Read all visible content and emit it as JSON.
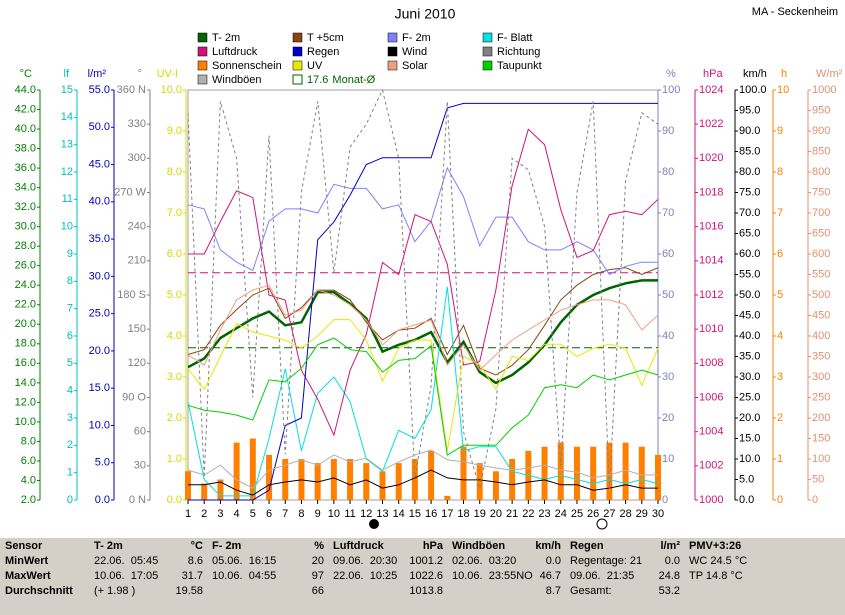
{
  "chart_data": {
    "type": "line",
    "title": "Juni 2010",
    "station": "MA - Seckenheim",
    "x": [
      1,
      2,
      3,
      4,
      5,
      6,
      7,
      8,
      9,
      10,
      11,
      12,
      13,
      14,
      15,
      16,
      17,
      18,
      19,
      20,
      21,
      22,
      23,
      24,
      25,
      26,
      27,
      28,
      29,
      30
    ],
    "xlim": [
      1,
      30
    ],
    "xticks": [
      1,
      2,
      3,
      4,
      5,
      6,
      7,
      8,
      9,
      10,
      11,
      12,
      13,
      14,
      15,
      16,
      17,
      18,
      19,
      20,
      21,
      22,
      23,
      24,
      25,
      26,
      27,
      28,
      29,
      30
    ],
    "axes": [
      {
        "label": "°C",
        "side": "left",
        "color": "#008000",
        "ylim": [
          2,
          44
        ],
        "yticks": [
          {
            "value": 2,
            "label": "2.0"
          },
          {
            "value": 4,
            "label": "4.0"
          },
          {
            "value": 6,
            "label": "6.0"
          },
          {
            "value": 8,
            "label": "8.0"
          },
          {
            "value": 10,
            "label": "10.0"
          },
          {
            "value": 12,
            "label": "12.0"
          },
          {
            "value": 14,
            "label": "14.0"
          },
          {
            "value": 16,
            "label": "16.0"
          },
          {
            "value": 18,
            "label": "18.0"
          },
          {
            "value": 20,
            "label": "20.0"
          },
          {
            "value": 22,
            "label": "22.0"
          },
          {
            "value": 24,
            "label": "24.0"
          },
          {
            "value": 26,
            "label": "26.0"
          },
          {
            "value": 28,
            "label": "28.0"
          },
          {
            "value": 30,
            "label": "30.0"
          },
          {
            "value": 32,
            "label": "32.0"
          },
          {
            "value": 34,
            "label": "34.0"
          },
          {
            "value": 36,
            "label": "36.0"
          },
          {
            "value": 38,
            "label": "38.0"
          },
          {
            "value": 40,
            "label": "40.0"
          },
          {
            "value": 42,
            "label": "42.0"
          },
          {
            "value": 44,
            "label": "44.0"
          }
        ]
      },
      {
        "label": "lf",
        "side": "left",
        "color": "#00c0c0",
        "ylim": [
          0,
          15
        ],
        "yticks": [
          0,
          1,
          2,
          3,
          4,
          5,
          6,
          7,
          8,
          9,
          10,
          11,
          12,
          13,
          14,
          15
        ]
      },
      {
        "label": "l/m²",
        "side": "left",
        "color": "#0000c0",
        "ylim": [
          0,
          55
        ],
        "yticks": [
          {
            "value": 0,
            "label": "0.0"
          },
          {
            "value": 5,
            "label": "5.0"
          },
          {
            "value": 10,
            "label": "10.0"
          },
          {
            "value": 15,
            "label": "15.0"
          },
          {
            "value": 20,
            "label": "20.0"
          },
          {
            "value": 25,
            "label": "25.0"
          },
          {
            "value": 30,
            "label": "30.0"
          },
          {
            "value": 35,
            "label": "35.0"
          },
          {
            "value": 40,
            "label": "40.0"
          },
          {
            "value": 45,
            "label": "45.0"
          },
          {
            "value": 50,
            "label": "50.0"
          },
          {
            "value": 55,
            "label": "55.0"
          }
        ]
      },
      {
        "label": "°",
        "side": "left",
        "color": "#808080",
        "ylim": [
          0,
          360
        ],
        "yticks": [
          {
            "value": 0,
            "label": "0 N"
          },
          30,
          60,
          {
            "value": 90,
            "label": "90 O"
          },
          120,
          150,
          {
            "value": 180,
            "label": "180 S"
          },
          210,
          240,
          {
            "value": 270,
            "label": "270 W"
          },
          300,
          330,
          {
            "value": 360,
            "label": "360 N"
          }
        ]
      },
      {
        "label": "UV-I",
        "side": "left",
        "color": "#d8d800",
        "ylim": [
          0,
          10
        ],
        "yticks": [
          {
            "value": 0,
            "label": "0.0"
          },
          {
            "value": 1,
            "label": "1.0"
          },
          {
            "value": 2,
            "label": "2.0"
          },
          {
            "value": 3,
            "label": "3.0"
          },
          {
            "value": 4,
            "label": "4.0"
          },
          {
            "value": 5,
            "label": "5.0"
          },
          {
            "value": 6,
            "label": "6.0"
          },
          {
            "value": 7,
            "label": "7.0"
          },
          {
            "value": 8,
            "label": "8.0"
          },
          {
            "value": 9,
            "label": "9.0"
          },
          {
            "value": 10,
            "label": "10.0"
          }
        ]
      },
      {
        "label": "%",
        "side": "right",
        "color": "#8080c0",
        "ylim": [
          0,
          100
        ],
        "yticks": [
          0,
          10,
          20,
          30,
          40,
          50,
          60,
          70,
          80,
          90,
          100
        ]
      },
      {
        "label": "hPa",
        "side": "right",
        "color": "#d0157a",
        "ylim": [
          1000,
          1024
        ],
        "yticks": [
          1000,
          1002,
          1004,
          1006,
          1008,
          1010,
          1012,
          1014,
          1016,
          1018,
          1020,
          1022,
          1024
        ]
      },
      {
        "label": "km/h",
        "side": "right",
        "color": "#000000",
        "ylim": [
          0,
          100
        ],
        "yticks": [
          {
            "value": 0,
            "label": "0.0"
          },
          {
            "value": 5,
            "label": "5.0"
          },
          {
            "value": 10,
            "label": "10.0"
          },
          {
            "value": 15,
            "label": "15.0"
          },
          {
            "value": 20,
            "label": "20.0"
          },
          {
            "value": 25,
            "label": "25.0"
          },
          {
            "value": 30,
            "label": "30.0"
          },
          {
            "value": 35,
            "label": "35.0"
          },
          {
            "value": 40,
            "label": "40.0"
          },
          {
            "value": 45,
            "label": "45.0"
          },
          {
            "value": 50,
            "label": "50.0"
          },
          {
            "value": 55,
            "label": "55.0"
          },
          {
            "value": 60,
            "label": "60.0"
          },
          {
            "value": 65,
            "label": "65.0"
          },
          {
            "value": 70,
            "label": "70.0"
          },
          {
            "value": 75,
            "label": "75.0"
          },
          {
            "value": 80,
            "label": "80.0"
          },
          {
            "value": 85,
            "label": "85.0"
          },
          {
            "value": 90,
            "label": "90.0"
          },
          {
            "value": 95,
            "label": "95.0"
          },
          {
            "value": 100,
            "label": "100.0"
          }
        ]
      },
      {
        "label": "h",
        "side": "right",
        "color": "#ff8000",
        "ylim": [
          0,
          10
        ],
        "yticks": [
          0,
          1,
          2,
          3,
          4,
          5,
          6,
          7,
          8,
          9,
          10
        ]
      },
      {
        "label": "W/m²",
        "side": "right",
        "color": "#e09070",
        "ylim": [
          0,
          1000
        ],
        "yticks": [
          0,
          50,
          100,
          150,
          200,
          250,
          300,
          350,
          400,
          450,
          500,
          550,
          600,
          650,
          700,
          750,
          800,
          850,
          900,
          950,
          1000
        ]
      }
    ],
    "series": [
      {
        "name": "T- 2m",
        "color": "#006400",
        "axis": "°C",
        "line_width": 2.5,
        "values": [
          15.6,
          16.5,
          18.6,
          19.6,
          20.6,
          21.3,
          19.9,
          20.2,
          23.3,
          23.3,
          22.1,
          20.6,
          17.2,
          17.9,
          18.4,
          19.2,
          16.1,
          18.2,
          15.1,
          14.0,
          14.8,
          16.1,
          17.9,
          20.2,
          22.0,
          23.0,
          23.7,
          24.2,
          24.5,
          24.5
        ]
      },
      {
        "name": "T +5cm",
        "color": "#8b4513",
        "axis": "°C",
        "values": [
          16.9,
          17.4,
          19.9,
          21.5,
          23.0,
          23.7,
          20.6,
          21.7,
          23.5,
          23.5,
          22.5,
          20.2,
          18.4,
          19.4,
          19.6,
          20.6,
          16.9,
          19.9,
          15.5,
          14.8,
          15.8,
          17.4,
          19.9,
          22.5,
          24.0,
          25.1,
          25.6,
          25.8,
          25.1,
          25.8
        ]
      },
      {
        "name": "F- 2m",
        "color": "#8080ff",
        "axis": "%",
        "values": [
          72,
          71,
          61,
          58,
          56,
          68,
          71,
          71,
          70,
          77,
          76,
          76,
          71,
          72,
          63,
          68,
          81,
          74,
          62,
          69,
          69,
          63,
          61,
          61,
          63,
          61,
          55,
          57,
          58,
          58
        ]
      },
      {
        "name": "F- Blatt",
        "color": "#00e0e0",
        "axis": "%",
        "values": [
          24,
          5,
          1,
          1,
          1,
          15,
          32,
          12,
          26,
          30,
          24,
          10,
          7,
          17,
          15,
          22,
          52,
          12,
          13,
          13,
          7,
          6,
          5,
          6,
          5,
          4,
          5,
          4,
          5,
          4
        ]
      },
      {
        "name": "Luftdruck",
        "color": "#d0157a",
        "axis": "hPa",
        "values": [
          1014.4,
          1014.4,
          1016.3,
          1018.1,
          1017.7,
          1012.0,
          1011.7,
          1007.6,
          1005.9,
          1003.8,
          1007.6,
          1009.7,
          1013.9,
          1013.2,
          1016.7,
          1016.3,
          1013.8,
          1007.9,
          1008.1,
          1012.3,
          1018.4,
          1021.7,
          1020.8,
          1017.0,
          1014.2,
          1014.6,
          1016.7,
          1016.9,
          1016.7,
          1017.6
        ]
      },
      {
        "name": "Regen",
        "color": "#0000cc",
        "axis": "l/m²",
        "values": [
          0,
          0,
          0,
          0,
          0,
          1.3,
          10.0,
          11.0,
          34.9,
          37.3,
          40.9,
          45.0,
          45.9,
          45.9,
          45.9,
          45.9,
          52.6,
          53.2,
          53.2,
          53.2,
          53.2,
          53.2,
          53.2,
          53.2,
          53.2,
          53.2,
          53.2,
          53.2,
          53.2,
          53.2
        ]
      },
      {
        "name": "Wind",
        "color": "#000000",
        "axis": "km/h",
        "values": [
          3.7,
          3.7,
          4.4,
          2.4,
          1.2,
          3.7,
          4.4,
          4.9,
          4.4,
          5.4,
          3.7,
          4.9,
          2.9,
          3.7,
          5.4,
          7.3,
          5.4,
          4.9,
          4.9,
          4.4,
          3.7,
          4.4,
          4.9,
          3.7,
          3.7,
          2.4,
          2.9,
          3.7,
          2.9,
          2.9
        ]
      },
      {
        "name": "Richtung",
        "color": "#808080",
        "axis": "°",
        "dash": true,
        "values": [
          340,
          20,
          350,
          300,
          90,
          320,
          40,
          270,
          350,
          200,
          310,
          330,
          360,
          300,
          20,
          100,
          350,
          60,
          10,
          80,
          300,
          290,
          240,
          30,
          270,
          350,
          10,
          280,
          340,
          330
        ]
      },
      {
        "name": "Sonnenschein",
        "color": "#ff8000",
        "axis": "h",
        "type": "bar",
        "values": [
          0.7,
          0.4,
          0.5,
          1.4,
          1.5,
          1.1,
          1.0,
          1.0,
          0.9,
          1.0,
          1.0,
          0.9,
          0.7,
          0.9,
          1.0,
          1.2,
          0.1,
          1.3,
          0.9,
          0.7,
          1.0,
          1.2,
          1.3,
          1.4,
          1.3,
          1.3,
          1.4,
          1.4,
          1.3,
          1.1
        ]
      },
      {
        "name": "UV",
        "color": "#e8e800",
        "axis": "UV-I",
        "values": [
          3.2,
          2.7,
          3.5,
          4.3,
          4.1,
          4.0,
          3.9,
          3.7,
          4.0,
          4.4,
          4.4,
          3.9,
          2.9,
          3.7,
          3.9,
          3.9,
          1.2,
          3.5,
          3.3,
          2.7,
          3.5,
          3.4,
          3.8,
          3.8,
          3.5,
          3.7,
          3.8,
          3.7,
          2.8,
          3.7
        ]
      },
      {
        "name": "Solar",
        "color": "#f0a080",
        "axis": "W/m²",
        "values": [
          354,
          329,
          415,
          488,
          512,
          524,
          451,
          463,
          512,
          500,
          476,
          439,
          378,
          415,
          427,
          439,
          329,
          378,
          317,
          354,
          390,
          415,
          439,
          463,
          476,
          488,
          488,
          476,
          415,
          451
        ]
      },
      {
        "name": "Taupunkt",
        "color": "#00d000",
        "axis": "°C",
        "values": [
          11.7,
          11.2,
          11.0,
          10.7,
          10.2,
          14.3,
          14.1,
          15.5,
          17.9,
          18.6,
          17.4,
          17.2,
          15.1,
          16.3,
          16.5,
          17.8,
          6.6,
          7.6,
          7.6,
          7.6,
          9.4,
          10.7,
          13.5,
          13.8,
          13.5,
          14.8,
          14.3,
          14.8,
          15.3,
          14.8
        ]
      },
      {
        "name": "Windböen",
        "color": "#b0b0b0",
        "axis": "km/h",
        "values": [
          7.3,
          6.1,
          8.5,
          4.9,
          2.9,
          7.3,
          8.5,
          9.8,
          8.5,
          11.0,
          9.3,
          10.2,
          7.3,
          9.3,
          11.0,
          12.2,
          9.8,
          9.3,
          8.5,
          7.8,
          7.3,
          7.8,
          8.5,
          7.3,
          6.8,
          5.4,
          6.1,
          7.3,
          6.1,
          6.1
        ]
      }
    ],
    "reference_lines": [
      {
        "name": "Monat-Ø",
        "value": 17.6,
        "axis": "°C",
        "color": "#006400"
      },
      {
        "value": 1013.3,
        "axis": "hPa",
        "color": "#d0157a"
      }
    ]
  },
  "table": {
    "row_labels": [
      "Sensor",
      "MinWert",
      "MaxWert",
      "Durchschnitt"
    ],
    "columns": [
      {
        "header": [
          "T- 2m",
          "°C"
        ],
        "cells": [
          [
            "22.06.  05:45",
            "8.6"
          ],
          [
            "10.06.  17:05",
            "31.7"
          ],
          [
            "(+ 1.98 )",
            "19.58"
          ]
        ]
      },
      {
        "header": [
          "F- 2m",
          "%"
        ],
        "cells": [
          [
            "05.06.  16:15",
            "20"
          ],
          [
            "10.06.  04:55",
            "97"
          ],
          [
            null,
            "66"
          ]
        ]
      },
      {
        "header": [
          "Luftdruck",
          "hPa"
        ],
        "cells": [
          [
            "09.06.  20:30",
            "1001.2"
          ],
          [
            "22.06.  10:25",
            "1022.6"
          ],
          [
            null,
            "1013.8"
          ]
        ]
      },
      {
        "header": [
          "Windböen",
          "km/h"
        ],
        "cells": [
          [
            "02.06.  03:20",
            "0.0"
          ],
          [
            "10.06.  23:55NO",
            "46.7"
          ],
          [
            null,
            "8.7"
          ]
        ]
      },
      {
        "header": [
          "Regen",
          "l/m²"
        ],
        "cells": [
          [
            "Regentage: 21",
            "0.0"
          ],
          [
            "09.06.  21:35",
            "24.8"
          ],
          [
            "Gesamt:",
            "53.2"
          ]
        ]
      },
      {
        "header": [
          "PMV+3:26",
          null
        ],
        "cells": [
          [
            "WC 24.5 °C",
            null
          ],
          [
            "TP 14.8 °C",
            null
          ]
        ]
      }
    ]
  }
}
